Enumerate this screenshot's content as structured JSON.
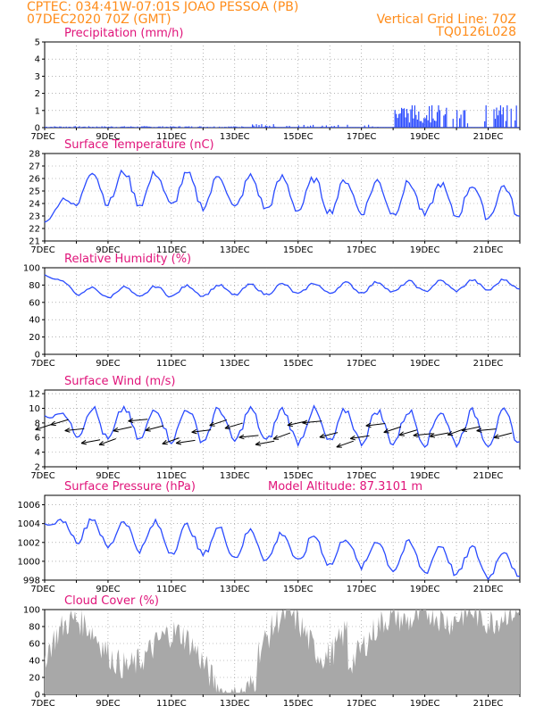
{
  "header": {
    "line1": "CPTEC:   034:41W-07:01S  JOAO PESSOA (PB)",
    "line2": "07DEC2020 70Z (GMT)",
    "right1": "Vertical Grid Line: 70Z",
    "right2": "TQ0126L028"
  },
  "colors": {
    "series": "#2a4bff",
    "cloud": "#a8a8a8",
    "header": "#ff8c1a",
    "title": "#e0147a"
  },
  "chart_data": [
    {
      "id": "precip",
      "type": "bar",
      "title": "Precipitation (mm/h)",
      "ylim": [
        0,
        5
      ],
      "yticks": [
        0,
        1,
        2,
        3,
        4,
        5
      ],
      "x": "hours since 7DEC (0-360)",
      "xticks": [
        "7DEC",
        "9DEC",
        "11DEC",
        "13DEC",
        "15DEC",
        "17DEC",
        "19DEC",
        "21DEC"
      ],
      "segments": [
        {
          "from": 0,
          "to": 70,
          "level": 0.05
        },
        {
          "from": 70,
          "to": 150,
          "level": 0.05
        },
        {
          "from": 150,
          "to": 200,
          "level": 0.12
        },
        {
          "from": 200,
          "to": 264,
          "level": 0.1
        },
        {
          "from": 264,
          "to": 330,
          "level": 0.7
        },
        {
          "from": 330,
          "to": 360,
          "level": 0.9
        }
      ]
    },
    {
      "id": "temp",
      "type": "line",
      "title": "Surface Temperature (nC)",
      "ylim": [
        21,
        28
      ],
      "yticks": [
        21,
        22,
        23,
        24,
        25,
        26,
        27,
        28
      ],
      "xticks": [
        "7DEC",
        "9DEC",
        "11DEC",
        "13DEC",
        "15DEC",
        "17DEC",
        "19DEC",
        "21DEC"
      ],
      "base": 25.5,
      "amp": 1.3,
      "start": 22.5,
      "trend": -0.004
    },
    {
      "id": "rh",
      "type": "line",
      "title": "Relative Humidity (%)",
      "ylim": [
        0,
        100
      ],
      "yticks": [
        0,
        20,
        40,
        60,
        80,
        100
      ],
      "xticks": [
        "7DEC",
        "9DEC",
        "11DEC",
        "13DEC",
        "15DEC",
        "17DEC",
        "19DEC",
        "21DEC"
      ],
      "base": 70,
      "amp": 6,
      "start": 92,
      "trend": 0.03
    },
    {
      "id": "wind",
      "type": "line",
      "title": "Surface Wind (m/s)",
      "ylim": [
        2,
        12.5
      ],
      "yticks": [
        2,
        4,
        6,
        8,
        10,
        12
      ],
      "xticks": [
        "7DEC",
        "9DEC",
        "11DEC",
        "13DEC",
        "15DEC",
        "17DEC",
        "19DEC",
        "21DEC"
      ],
      "base": 8,
      "amp": 2.2,
      "start": 9,
      "trend": -0.002
    },
    {
      "id": "pres",
      "type": "line",
      "title": "Surface Pressure (hPa)",
      "subtitle": "Model Altitude: 87.3101 m",
      "ylim": [
        998,
        1007
      ],
      "yticks": [
        998,
        1000,
        1002,
        1004,
        1006
      ],
      "xticks": [
        "7DEC",
        "9DEC",
        "11DEC",
        "13DEC",
        "15DEC",
        "17DEC",
        "19DEC",
        "21DEC"
      ],
      "base": 1003.5,
      "amp": 1.5,
      "start": 1004,
      "trend": -0.011
    },
    {
      "id": "cloud",
      "type": "area",
      "title": "Cloud Cover (%)",
      "ylim": [
        0,
        100
      ],
      "yticks": [
        0,
        20,
        40,
        60,
        80,
        100
      ],
      "xticks": [
        "7DEC",
        "9DEC",
        "11DEC",
        "13DEC",
        "15DEC",
        "17DEC",
        "19DEC",
        "21DEC"
      ]
    }
  ]
}
